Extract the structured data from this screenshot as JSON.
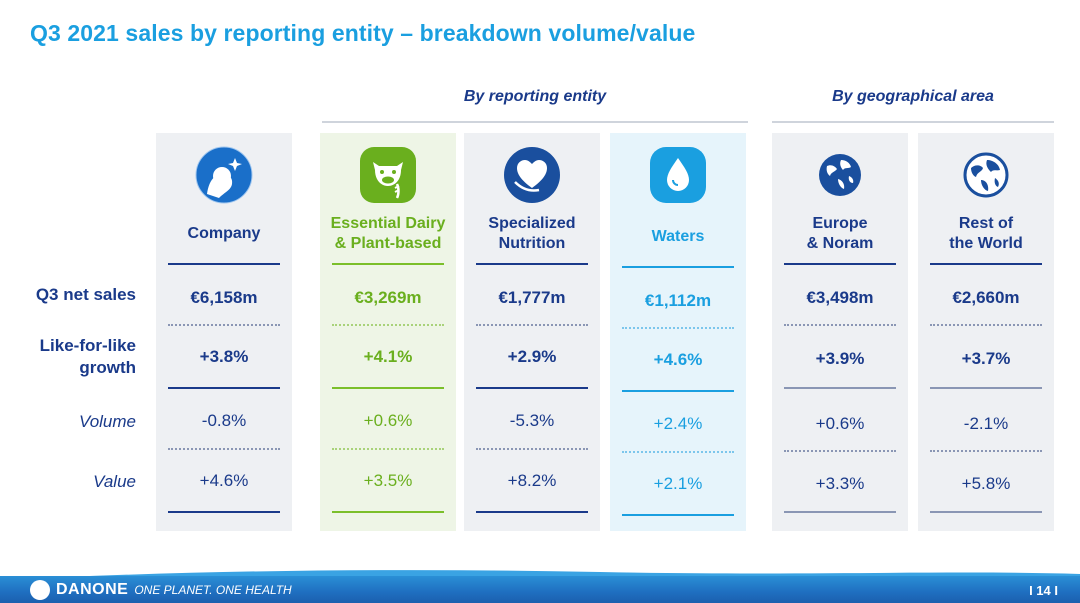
{
  "title": "Q3 2021 sales by reporting entity – breakdown volume/value",
  "groups": {
    "entity": "By reporting entity",
    "geo": "By geographical area"
  },
  "row_labels": {
    "net_sales": "Q3 net sales",
    "lfl_line1": "Like-for-like",
    "lfl_line2": "growth",
    "volume": "Volume",
    "value": "Value"
  },
  "columns": {
    "company": {
      "header": "Company",
      "icon": "danone-child-icon",
      "net_sales": "€6,158m",
      "lfl": "+3.8%",
      "volume": "-0.8%",
      "value": "+4.6%"
    },
    "dairy": {
      "header1": "Essential Dairy",
      "header2": "& Plant-based",
      "icon": "cow-wheat-icon",
      "net_sales": "€3,269m",
      "lfl": "+4.1%",
      "volume": "+0.6%",
      "value": "+3.5%"
    },
    "spec": {
      "header1": "Specialized",
      "header2": "Nutrition",
      "icon": "heart-hand-icon",
      "net_sales": "€1,777m",
      "lfl": "+2.9%",
      "volume": "-5.3%",
      "value": "+8.2%"
    },
    "waters": {
      "header": "Waters",
      "icon": "water-drop-icon",
      "net_sales": "€1,112m",
      "lfl": "+4.6%",
      "volume": "+2.4%",
      "value": "+2.1%"
    },
    "europe": {
      "header1": "Europe",
      "header2": "& Noram",
      "icon": "globe-europe-icon",
      "net_sales": "€3,498m",
      "lfl": "+3.9%",
      "volume": "+0.6%",
      "value": "+3.3%"
    },
    "row": {
      "header1": "Rest of",
      "header2": "the World",
      "icon": "globe-world-icon",
      "net_sales": "€2,660m",
      "lfl": "+3.7%",
      "volume": "-2.1%",
      "value": "+5.8%"
    }
  },
  "footer": {
    "brand": "DANONE",
    "slogan": "ONE PLANET. ONE HEALTH",
    "page": "I 14 I"
  },
  "colors": {
    "title": "#1a9fe0",
    "navy": "#1a3a8a",
    "dairy_green": "#6aaf1e",
    "waters_blue": "#1a9fe0"
  }
}
